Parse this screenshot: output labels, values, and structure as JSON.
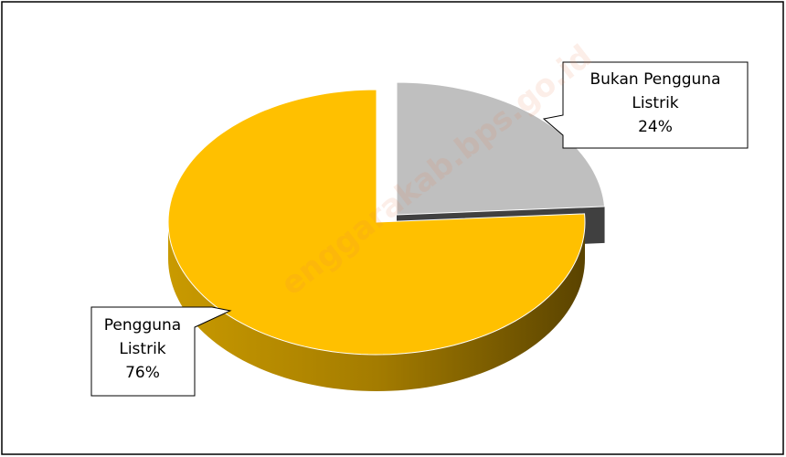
{
  "chart_data": {
    "type": "pie",
    "categories": [
      "Pengguna Listrik",
      "Bukan Pengguna Listrik"
    ],
    "values": [
      76,
      24
    ],
    "value_labels": [
      "76%",
      "24%"
    ],
    "colors": [
      "#ffc000",
      "#bfbfbf"
    ],
    "annotation": "enggarakab.bps.go.id"
  }
}
